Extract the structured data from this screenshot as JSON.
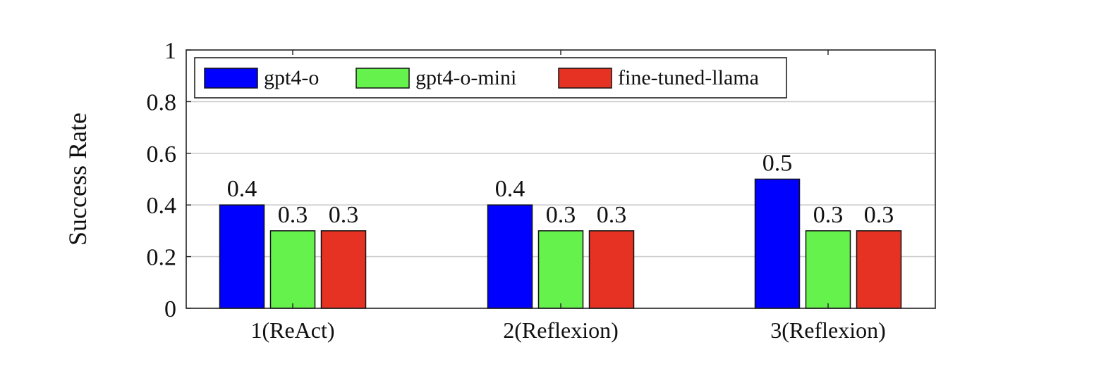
{
  "chart_data": {
    "type": "bar",
    "title": "",
    "xlabel": "",
    "ylabel": "Success Rate",
    "ylim": [
      0,
      1
    ],
    "yticks": [
      0,
      0.2,
      0.4,
      0.6,
      0.8,
      1
    ],
    "ytick_labels": [
      "0",
      "0.2",
      "0.4",
      "0.6",
      "0.8",
      "1"
    ],
    "grid": true,
    "legend_position": "top-left",
    "categories": [
      "1(ReAct)",
      "2(Reflexion)",
      "3(Reflexion)"
    ],
    "series": [
      {
        "name": "gpt4-o",
        "color": "#0000ff",
        "values": [
          0.4,
          0.4,
          0.5
        ],
        "labels": [
          "0.4",
          "0.4",
          "0.5"
        ]
      },
      {
        "name": "gpt4-o-mini",
        "color": "#66f24d",
        "values": [
          0.3,
          0.3,
          0.3
        ],
        "labels": [
          "0.3",
          "0.3",
          "0.3"
        ]
      },
      {
        "name": "fine-tuned-llama",
        "color": "#e63222",
        "values": [
          0.3,
          0.3,
          0.3
        ],
        "labels": [
          "0.3",
          "0.3",
          "0.3"
        ]
      }
    ]
  }
}
